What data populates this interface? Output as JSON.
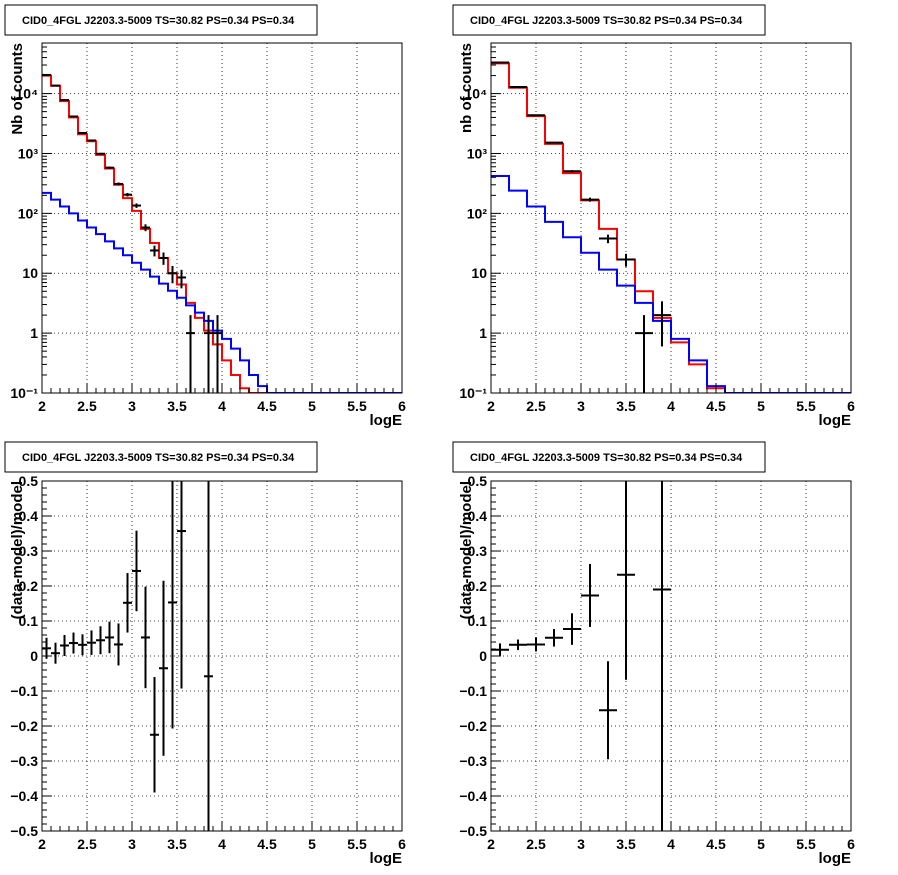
{
  "chart_data": [
    {
      "id": "top-left",
      "type": "line",
      "title": "CID0_4FGL J2203.3-5009 TS=30.82 PS=0.34 PS=0.34",
      "xlabel": "logE",
      "ylabel": "Nb of counts",
      "xlim": [
        2,
        6
      ],
      "ylim": [
        0.1,
        70000
      ],
      "yscale": "log",
      "grid": true,
      "xticks": [
        2,
        2.5,
        3,
        3.5,
        4,
        4.5,
        5,
        5.5,
        6
      ],
      "xtick_labels": [
        "2",
        "2.5",
        "3",
        "3.5",
        "4",
        "4.5",
        "5",
        "5.5",
        "6"
      ],
      "yticks": [
        0.1,
        1,
        10,
        100,
        1000,
        10000
      ],
      "ytick_labels": [
        "10⁻¹",
        "1",
        "10",
        "10²",
        "10³",
        "10⁴"
      ],
      "bin_edges": [
        2,
        2.1,
        2.2,
        2.3,
        2.4,
        2.5,
        2.6,
        2.7,
        2.8,
        2.9,
        3.0,
        3.1,
        3.2,
        3.3,
        3.4,
        3.5,
        3.6,
        3.7,
        3.8,
        3.9,
        4.0,
        4.1,
        4.2,
        4.3,
        4.4,
        4.5,
        4.6,
        4.7,
        4.8,
        4.9,
        5.0,
        5.1,
        5.2,
        5.3,
        5.4,
        5.5,
        5.6,
        5.7,
        5.8,
        5.9,
        6.0
      ],
      "series": [
        {
          "kind": "hist",
          "color": "#ff0000",
          "values": [
            20000,
            13500,
            7500,
            4000,
            2100,
            1600,
            950,
            560,
            300,
            180,
            110,
            55,
            32,
            18,
            10,
            6.5,
            3.2,
            1.8,
            1.1,
            0.65,
            0.35,
            0.2,
            0.12,
            0.1,
            0.1,
            0.1,
            0.1,
            0.1,
            0.1,
            0.1,
            0.1,
            0.1,
            0.1,
            0.1,
            0.1,
            0.1,
            0.1,
            0.1,
            0.1,
            0.1
          ]
        },
        {
          "kind": "hist",
          "color": "#0000ff",
          "values": [
            220,
            170,
            130,
            100,
            76,
            58,
            45,
            34,
            26,
            20,
            15,
            11.5,
            8.8,
            6.7,
            5.1,
            3.9,
            2.9,
            2.2,
            1.6,
            1.1,
            0.8,
            0.55,
            0.35,
            0.2,
            0.13,
            0.1,
            0.1,
            0.1,
            0.1,
            0.1,
            0.1,
            0.1,
            0.1,
            0.1,
            0.1,
            0.1,
            0.1,
            0.1,
            0.1,
            0.1
          ]
        },
        {
          "kind": "errorbar",
          "color": "#000000",
          "x": [
            2.05,
            2.15,
            2.25,
            2.35,
            2.45,
            2.55,
            2.65,
            2.75,
            2.85,
            2.95,
            3.05,
            3.15,
            3.25,
            3.35,
            3.45,
            3.55,
            3.65,
            3.75,
            3.85,
            3.95
          ],
          "y": [
            20500,
            13600,
            7800,
            4150,
            2200,
            1650,
            990,
            580,
            310,
            205,
            135,
            58,
            24,
            18,
            10,
            8.5,
            1,
            0.0,
            1,
            1
          ],
          "yerr": [
            140,
            115,
            88,
            64,
            47,
            40,
            31,
            24,
            17.6,
            14,
            11.6,
            7.6,
            4.9,
            4.2,
            3.2,
            2.9,
            1,
            0,
            1,
            1
          ]
        }
      ]
    },
    {
      "id": "top-right",
      "type": "line",
      "title": "CID0_4FGL J2203.3-5009 TS=30.82 PS=0.34 PS=0.34",
      "xlabel": "logE",
      "ylabel": "nb of counts",
      "xlim": [
        2,
        6
      ],
      "ylim": [
        0.1,
        70000
      ],
      "yscale": "log",
      "grid": true,
      "xticks": [
        2,
        2.5,
        3,
        3.5,
        4,
        4.5,
        5,
        5.5,
        6
      ],
      "xtick_labels": [
        "2",
        "2.5",
        "3",
        "3.5",
        "4",
        "4.5",
        "5",
        "5.5",
        "6"
      ],
      "yticks": [
        0.1,
        1,
        10,
        100,
        1000,
        10000
      ],
      "ytick_labels": [
        "10⁻¹",
        "1",
        "10",
        "10²",
        "10³",
        "10⁴"
      ],
      "bin_edges": [
        2,
        2.2,
        2.4,
        2.6,
        2.8,
        3.0,
        3.2,
        3.4,
        3.6,
        3.8,
        4.0,
        4.2,
        4.4,
        4.6,
        4.8,
        5.0,
        5.2,
        5.4,
        5.6,
        5.8,
        6.0
      ],
      "series": [
        {
          "kind": "hist",
          "color": "#ff0000",
          "values": [
            32000,
            12500,
            4200,
            1450,
            470,
            165,
            55,
            17,
            5,
            1.8,
            0.7,
            0.3,
            0.12,
            0.1,
            0.1,
            0.1,
            0.1,
            0.1,
            0.1,
            0.1
          ]
        },
        {
          "kind": "hist",
          "color": "#0000ff",
          "values": [
            420,
            240,
            130,
            72,
            40,
            22,
            11.5,
            6.2,
            3.2,
            1.6,
            0.8,
            0.35,
            0.13,
            0.1,
            0.1,
            0.1,
            0.1,
            0.1,
            0.1,
            0.1
          ]
        },
        {
          "kind": "errorbar",
          "color": "#000000",
          "x": [
            2.1,
            2.3,
            2.5,
            2.7,
            2.9,
            3.1,
            3.3,
            3.5,
            3.7,
            3.9
          ],
          "y": [
            33000,
            12900,
            4350,
            1520,
            505,
            170,
            38,
            17,
            1,
            2
          ],
          "yerr": [
            182,
            114,
            66,
            39,
            22,
            13,
            6.2,
            4.1,
            1,
            1.4
          ]
        }
      ]
    },
    {
      "id": "bottom-left",
      "type": "scatter",
      "title": "CID0_4FGL J2203.3-5009 TS=30.82 PS=0.34 PS=0.34",
      "xlabel": "logE",
      "ylabel": "(data-model)/model",
      "xlim": [
        2,
        6
      ],
      "ylim": [
        -0.5,
        0.5
      ],
      "grid": true,
      "xticks": [
        2,
        2.5,
        3,
        3.5,
        4,
        4.5,
        5,
        5.5,
        6
      ],
      "xtick_labels": [
        "2",
        "2.5",
        "3",
        "3.5",
        "4",
        "4.5",
        "5",
        "5.5",
        "6"
      ],
      "yticks": [
        -0.5,
        -0.4,
        -0.3,
        -0.2,
        -0.1,
        0,
        0.1,
        0.2,
        0.3,
        0.4,
        0.5
      ],
      "ytick_labels": [
        "−0.5",
        "−0.4",
        "−0.3",
        "−0.2",
        "−0.1",
        "0",
        "0.1",
        "0.2",
        "0.3",
        "0.4",
        "0.5"
      ],
      "series": [
        {
          "kind": "errorbar",
          "color": "#000000",
          "xhalf": 0.05,
          "x": [
            2.05,
            2.15,
            2.25,
            2.35,
            2.45,
            2.55,
            2.65,
            2.75,
            2.85,
            2.95,
            3.05,
            3.15,
            3.25,
            3.35,
            3.45,
            3.55,
            3.85
          ],
          "y": [
            0.022,
            0.008,
            0.03,
            0.037,
            0.032,
            0.038,
            0.045,
            0.053,
            0.033,
            0.152,
            0.243,
            0.053,
            -0.225,
            -0.035,
            0.153,
            0.357,
            -0.058
          ],
          "yerr": [
            0.03,
            0.03,
            0.03,
            0.03,
            0.03,
            0.035,
            0.04,
            0.045,
            0.06,
            0.085,
            0.115,
            0.145,
            0.165,
            0.25,
            0.36,
            0.45,
            0.6
          ]
        }
      ]
    },
    {
      "id": "bottom-right",
      "type": "scatter",
      "title": "CID0_4FGL J2203.3-5009 TS=30.82 PS=0.34 PS=0.34",
      "xlabel": "logE",
      "ylabel": "(data-model)/model",
      "xlim": [
        2,
        6
      ],
      "ylim": [
        -0.5,
        0.5
      ],
      "grid": true,
      "xticks": [
        2,
        2.5,
        3,
        3.5,
        4,
        4.5,
        5,
        5.5,
        6
      ],
      "xtick_labels": [
        "2",
        "2.5",
        "3",
        "3.5",
        "4",
        "4.5",
        "5",
        "5.5",
        "6"
      ],
      "yticks": [
        -0.5,
        -0.4,
        -0.3,
        -0.2,
        -0.1,
        0,
        0.1,
        0.2,
        0.3,
        0.4,
        0.5
      ],
      "ytick_labels": [
        "−0.5",
        "−0.4",
        "−0.3",
        "−0.2",
        "−0.1",
        "0",
        "0.1",
        "0.2",
        "0.3",
        "0.4",
        "0.5"
      ],
      "series": [
        {
          "kind": "errorbar",
          "color": "#000000",
          "xhalf": 0.1,
          "x": [
            2.1,
            2.3,
            2.5,
            2.7,
            2.9,
            3.1,
            3.3,
            3.5,
            3.9
          ],
          "y": [
            0.018,
            0.032,
            0.033,
            0.052,
            0.077,
            0.173,
            -0.155,
            0.232,
            0.19
          ],
          "yerr": [
            0.018,
            0.015,
            0.02,
            0.025,
            0.045,
            0.09,
            0.14,
            0.3,
            0.72
          ]
        }
      ]
    }
  ]
}
